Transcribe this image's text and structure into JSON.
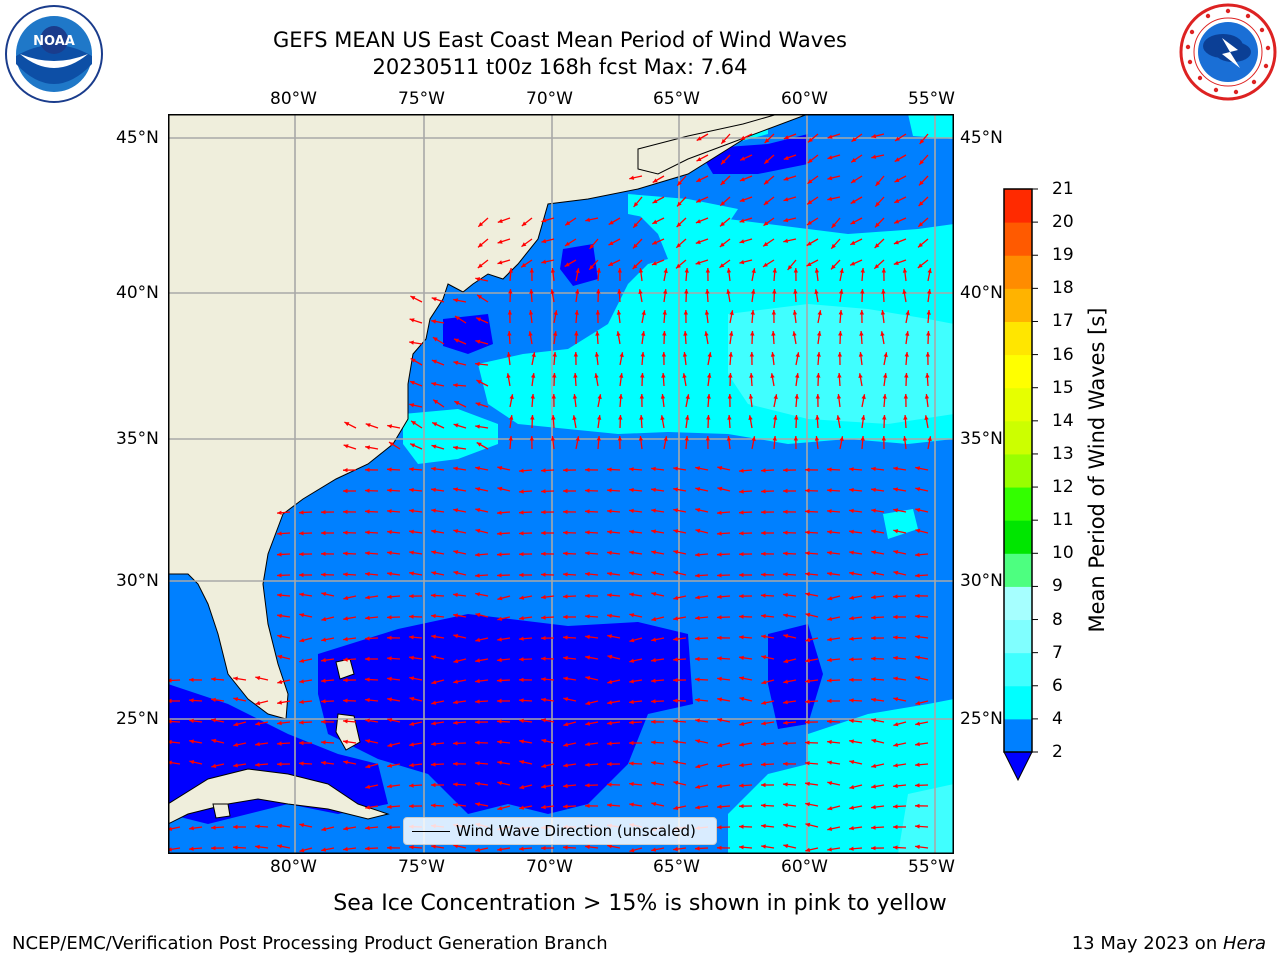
{
  "title": {
    "line1": "GEFS MEAN US East Coast Mean Period of Wind Waves",
    "line2": "20230511 t00z 168h fcst   Max: 7.64"
  },
  "logos": {
    "left": {
      "icon": "noaa-logo",
      "text": "NOAA"
    },
    "right": {
      "icon": "national-weather-service-logo"
    }
  },
  "map": {
    "lon_labels": [
      "80°W",
      "75°W",
      "70°W",
      "65°W",
      "60°W",
      "55°W"
    ],
    "lat_labels": [
      "45°N",
      "40°N",
      "35°N",
      "30°N",
      "25°N"
    ],
    "gridlines": true,
    "colors": {
      "land": "#efeedc",
      "gridline": "#a8a8a8",
      "arrow": "#ff0000",
      "coastline": "#000000"
    }
  },
  "legend": {
    "label": "Wind Wave Direction (unscaled)"
  },
  "colorbar": {
    "label": "Mean Period of Wind Waves [s]",
    "ticks": [
      "2",
      "4",
      "6",
      "7",
      "8",
      "9",
      "10",
      "11",
      "12",
      "13",
      "14",
      "15",
      "16",
      "17",
      "18",
      "19",
      "20",
      "21"
    ],
    "colors": [
      "#0080ff",
      "#00ffff",
      "#40ffff",
      "#80ffff",
      "#a6ffff",
      "#4dff80",
      "#00e600",
      "#33ff00",
      "#99ff00",
      "#ccff00",
      "#e6ff00",
      "#ffff00",
      "#ffe600",
      "#ffb300",
      "#ff8c00",
      "#ff5a00",
      "#ff2a00",
      "#ff0000"
    ],
    "under_color": "#0000ff"
  },
  "note": "Sea Ice Concentration > 15% is shown in pink to yellow",
  "footer": {
    "left": "NCEP/EMC/Verification Post Processing Product Generation Branch",
    "right_prefix": "13 May 2023 on ",
    "right_machine": "Hera"
  }
}
